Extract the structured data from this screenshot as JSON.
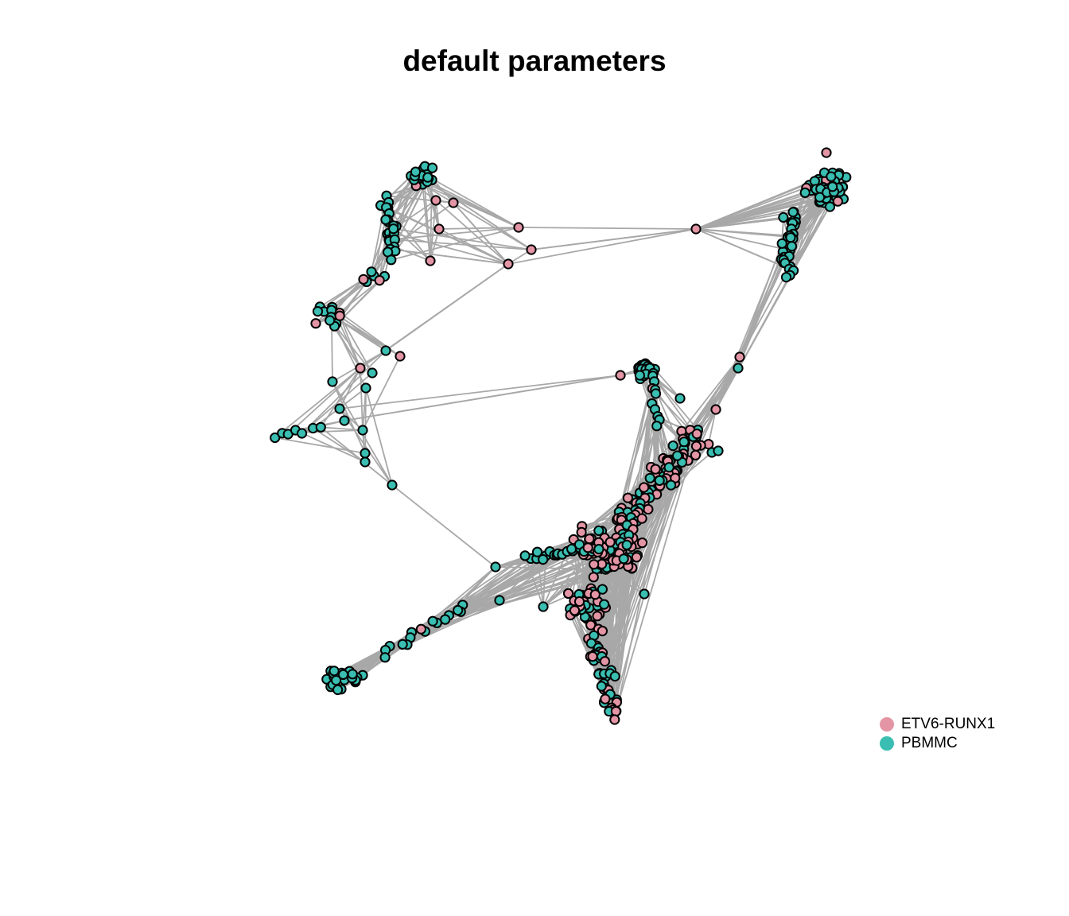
{
  "title": "default parameters",
  "colors": {
    "edge": "#a8a8a8",
    "node_outline": "#000000"
  },
  "legend": [
    {
      "label": "ETV6-RUNX1",
      "color": "#e495a5"
    },
    {
      "label": "PBMMC",
      "color": "#39beb1"
    }
  ]
}
